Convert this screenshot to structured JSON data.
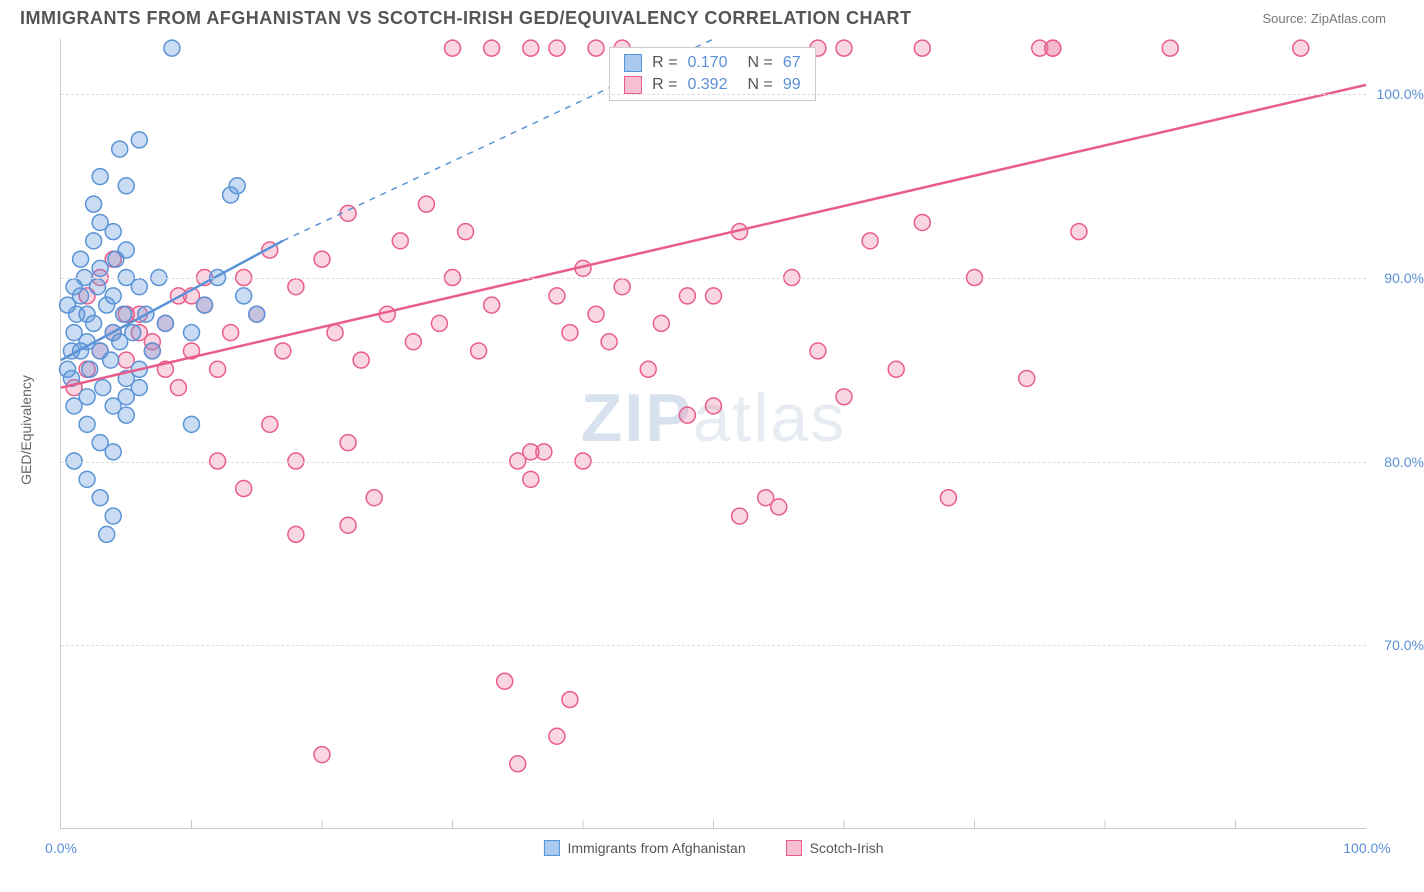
{
  "header": {
    "title": "IMMIGRANTS FROM AFGHANISTAN VS SCOTCH-IRISH GED/EQUIVALENCY CORRELATION CHART",
    "source_prefix": "Source: ",
    "source": "ZipAtlas.com"
  },
  "chart": {
    "type": "scatter",
    "ylabel": "GED/Equivalency",
    "xlim": [
      0,
      100
    ],
    "ylim": [
      60,
      103
    ],
    "xticks": [
      0,
      100
    ],
    "xtick_labels": [
      "0.0%",
      "100.0%"
    ],
    "yticks": [
      70,
      80,
      90,
      100
    ],
    "ytick_labels": [
      "70.0%",
      "80.0%",
      "90.0%",
      "100.0%"
    ],
    "minor_xticks": [
      10,
      20,
      30,
      40,
      50,
      60,
      70,
      80,
      90
    ],
    "background_color": "#ffffff",
    "grid_color": "#dddddd",
    "marker_radius": 8,
    "marker_stroke_width": 1.5,
    "series": [
      {
        "name": "Immigrants from Afghanistan",
        "color_fill": "rgba(99,154,222,0.35)",
        "color_stroke": "#5a93d6",
        "swatch_fill": "#a9c9ef",
        "swatch_border": "#5a93d6",
        "R": "0.170",
        "N": "67",
        "trend": {
          "x1": 0,
          "y1": 85.5,
          "x2": 17,
          "y2": 92.0,
          "dash_x2": 50,
          "dash_y2": 103
        },
        "points": [
          [
            0.5,
            85
          ],
          [
            0.8,
            86
          ],
          [
            1,
            87
          ],
          [
            1.2,
            88
          ],
          [
            1.5,
            89
          ],
          [
            1.8,
            90
          ],
          [
            2,
            86.5
          ],
          [
            2,
            88
          ],
          [
            2.2,
            85
          ],
          [
            2.5,
            87.5
          ],
          [
            2.8,
            89.5
          ],
          [
            3,
            86
          ],
          [
            3,
            90.5
          ],
          [
            3.2,
            84
          ],
          [
            3.5,
            88.5
          ],
          [
            3.8,
            85.5
          ],
          [
            4,
            87
          ],
          [
            4,
            89
          ],
          [
            4.2,
            91
          ],
          [
            4.5,
            86.5
          ],
          [
            4.8,
            88
          ],
          [
            5,
            84.5
          ],
          [
            5,
            90
          ],
          [
            5.5,
            87
          ],
          [
            6,
            85
          ],
          [
            6,
            89.5
          ],
          [
            6.5,
            88
          ],
          [
            7,
            86
          ],
          [
            7.5,
            90
          ],
          [
            8,
            87.5
          ],
          [
            2,
            82
          ],
          [
            3,
            81
          ],
          [
            4,
            80.5
          ],
          [
            5,
            82.5
          ],
          [
            3.5,
            76
          ],
          [
            4,
            77
          ],
          [
            2.5,
            94
          ],
          [
            3,
            95.5
          ],
          [
            4.5,
            97
          ],
          [
            5,
            95
          ],
          [
            6,
            97.5
          ],
          [
            10,
            82
          ],
          [
            10,
            87
          ],
          [
            11,
            88.5
          ],
          [
            12,
            90
          ],
          [
            13,
            94.5
          ],
          [
            13.5,
            95
          ],
          [
            14,
            89
          ],
          [
            15,
            88
          ],
          [
            8.5,
            102.5
          ],
          [
            1,
            83
          ],
          [
            2,
            83.5
          ],
          [
            1.5,
            91
          ],
          [
            2.5,
            92
          ],
          [
            3,
            93
          ],
          [
            4,
            92.5
          ],
          [
            5,
            91.5
          ],
          [
            1,
            80
          ],
          [
            2,
            79
          ],
          [
            3,
            78
          ],
          [
            4,
            83
          ],
          [
            5,
            83.5
          ],
          [
            6,
            84
          ],
          [
            0.5,
            88.5
          ],
          [
            1,
            89.5
          ],
          [
            1.5,
            86
          ],
          [
            0.8,
            84.5
          ]
        ]
      },
      {
        "name": "Scotch-Irish",
        "color_fill": "rgba(235,120,155,0.30)",
        "color_stroke": "#e85d8a",
        "swatch_fill": "#f6c0d1",
        "swatch_border": "#e85d8a",
        "R": "0.392",
        "N": "99",
        "trend": {
          "x1": 0,
          "y1": 84,
          "x2": 100,
          "y2": 100.5
        },
        "points": [
          [
            1,
            84
          ],
          [
            2,
            85
          ],
          [
            3,
            86
          ],
          [
            4,
            87
          ],
          [
            5,
            85.5
          ],
          [
            6,
            88
          ],
          [
            7,
            86.5
          ],
          [
            8,
            87.5
          ],
          [
            9,
            89
          ],
          [
            10,
            86
          ],
          [
            11,
            88.5
          ],
          [
            12,
            85
          ],
          [
            13,
            87
          ],
          [
            14,
            90
          ],
          [
            15,
            88
          ],
          [
            16,
            91.5
          ],
          [
            17,
            86
          ],
          [
            18,
            89.5
          ],
          [
            20,
            91
          ],
          [
            21,
            87
          ],
          [
            22,
            93.5
          ],
          [
            23,
            85.5
          ],
          [
            25,
            88
          ],
          [
            26,
            92
          ],
          [
            27,
            86.5
          ],
          [
            28,
            94
          ],
          [
            29,
            87.5
          ],
          [
            30,
            90
          ],
          [
            31,
            92.5
          ],
          [
            32,
            86
          ],
          [
            33,
            88.5
          ],
          [
            35,
            80
          ],
          [
            36,
            79
          ],
          [
            37,
            80.5
          ],
          [
            38,
            89
          ],
          [
            39,
            87
          ],
          [
            40,
            90.5
          ],
          [
            41,
            88
          ],
          [
            42,
            86.5
          ],
          [
            43,
            89.5
          ],
          [
            30,
            102.5
          ],
          [
            33,
            102.5
          ],
          [
            36,
            102.5
          ],
          [
            38,
            102.5
          ],
          [
            41,
            102.5
          ],
          [
            43,
            102.5
          ],
          [
            58,
            102.5
          ],
          [
            60,
            102.5
          ],
          [
            66,
            102.5
          ],
          [
            75,
            102.5
          ],
          [
            76,
            102.5
          ],
          [
            85,
            102.5
          ],
          [
            95,
            102.5
          ],
          [
            45,
            85
          ],
          [
            46,
            87.5
          ],
          [
            48,
            89
          ],
          [
            50,
            83
          ],
          [
            52,
            92.5
          ],
          [
            55,
            77.5
          ],
          [
            56,
            90
          ],
          [
            58,
            86
          ],
          [
            60,
            83.5
          ],
          [
            62,
            92
          ],
          [
            64,
            85
          ],
          [
            66,
            93
          ],
          [
            68,
            78
          ],
          [
            70,
            90
          ],
          [
            74,
            84.5
          ],
          [
            76,
            102.5
          ],
          [
            78,
            92.5
          ],
          [
            18,
            76
          ],
          [
            20,
            64
          ],
          [
            22,
            76.5
          ],
          [
            24,
            78
          ],
          [
            34,
            68
          ],
          [
            35,
            63.5
          ],
          [
            36,
            80.5
          ],
          [
            38,
            65
          ],
          [
            39,
            67
          ],
          [
            40,
            80
          ],
          [
            12,
            80
          ],
          [
            14,
            78.5
          ],
          [
            16,
            82
          ],
          [
            18,
            80
          ],
          [
            22,
            81
          ],
          [
            48,
            82.5
          ],
          [
            50,
            89
          ],
          [
            52,
            77
          ],
          [
            54,
            78
          ],
          [
            2,
            89
          ],
          [
            3,
            90
          ],
          [
            4,
            91
          ],
          [
            5,
            88
          ],
          [
            6,
            87
          ],
          [
            7,
            86
          ],
          [
            8,
            85
          ],
          [
            9,
            84
          ],
          [
            10,
            89
          ],
          [
            11,
            90
          ]
        ]
      }
    ],
    "legend": {
      "items": [
        {
          "label": "Immigrants from Afghanistan",
          "swatch_fill": "#a9c9ef",
          "swatch_border": "#5a93d6"
        },
        {
          "label": "Scotch-Irish",
          "swatch_fill": "#f6c0d1",
          "swatch_border": "#e85d8a"
        }
      ]
    },
    "stats_box": {
      "left_pct": 42,
      "top_pct": 1
    },
    "watermark": {
      "zip": "ZIP",
      "atlas": "atlas"
    }
  }
}
